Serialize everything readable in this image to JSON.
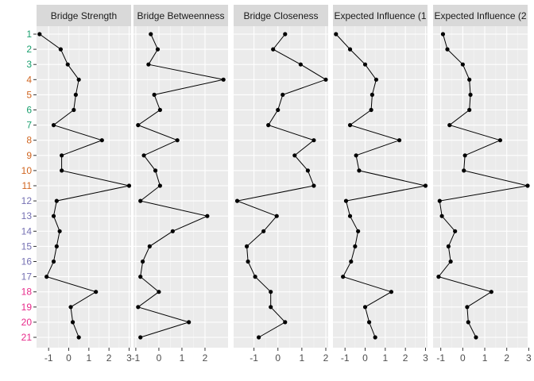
{
  "chart_data": {
    "type": "line",
    "facets": [
      {
        "title": "Bridge Strength",
        "xlim": [
          -1.6,
          3.1
        ],
        "xticks": [
          -1,
          0,
          1,
          2,
          3
        ],
        "values": [
          -1.45,
          -0.4,
          -0.05,
          0.5,
          0.35,
          0.25,
          -0.75,
          1.65,
          -0.35,
          -0.35,
          3.0,
          -0.6,
          -0.75,
          -0.45,
          -0.6,
          -0.75,
          -1.1,
          1.35,
          0.1,
          0.2,
          0.5
        ]
      },
      {
        "title": "Bridge Betweenness",
        "xlim": [
          -1.1,
          3.0
        ],
        "xticks": [
          -1,
          0,
          1,
          2
        ],
        "values": [
          -0.35,
          -0.05,
          -0.45,
          2.8,
          -0.2,
          0.05,
          -0.9,
          0.8,
          -0.65,
          -0.15,
          0.05,
          -0.8,
          2.1,
          0.6,
          -0.4,
          -0.7,
          -0.8,
          0.0,
          -0.9,
          1.3,
          -0.8
        ]
      },
      {
        "title": "Bridge Closeness",
        "xlim": [
          -1.85,
          2.1
        ],
        "xticks": [
          -1,
          0,
          1,
          2
        ],
        "values": [
          0.3,
          -0.2,
          0.95,
          2.0,
          0.2,
          0.0,
          -0.4,
          1.5,
          0.7,
          1.25,
          1.5,
          -1.7,
          -0.05,
          -0.6,
          -1.3,
          -1.25,
          -0.95,
          -0.3,
          -0.3,
          0.3,
          -0.8
        ]
      },
      {
        "title": "Expected Influence (1",
        "xlim": [
          -1.6,
          3.1
        ],
        "xticks": [
          -1,
          0,
          1,
          2,
          3
        ],
        "values": [
          -1.45,
          -0.75,
          0.0,
          0.55,
          0.35,
          0.3,
          -0.75,
          1.7,
          -0.45,
          -0.3,
          3.0,
          -0.95,
          -0.75,
          -0.35,
          -0.5,
          -0.7,
          -1.1,
          1.3,
          0.0,
          0.2,
          0.5
        ]
      },
      {
        "title": "Expected Influence (2",
        "xlim": [
          -1.35,
          2.95
        ],
        "xticks": [
          -1,
          0,
          1,
          2,
          3
        ],
        "values": [
          -0.9,
          -0.7,
          0.0,
          0.3,
          0.35,
          0.3,
          -0.6,
          1.7,
          0.1,
          0.05,
          2.95,
          -1.05,
          -0.95,
          -0.35,
          -0.65,
          -0.55,
          -1.1,
          1.3,
          0.2,
          0.25,
          0.6
        ]
      }
    ],
    "y_categories": [
      "1",
      "2",
      "3",
      "4",
      "5",
      "6",
      "7",
      "8",
      "9",
      "10",
      "11",
      "12",
      "13",
      "14",
      "15",
      "16",
      "17",
      "18",
      "19",
      "20",
      "21"
    ],
    "y_label_colors": [
      "#1aa06e",
      "#1aa06e",
      "#1aa06e",
      "#d06520",
      "#d06520",
      "#1aa06e",
      "#1aa06e",
      "#d06520",
      "#d06520",
      "#d06520",
      "#d06520",
      "#7570b3",
      "#7570b3",
      "#7570b3",
      "#7570b3",
      "#7570b3",
      "#7570b3",
      "#e7298a",
      "#e7298a",
      "#e7298a",
      "#e7298a"
    ],
    "xlabel": "",
    "ylabel": "",
    "grid": true,
    "colors": {
      "panel": "#ebebeb",
      "strip": "#d9d9d9",
      "grid": "#ffffff",
      "line": "#000000",
      "point": "#000000"
    }
  }
}
